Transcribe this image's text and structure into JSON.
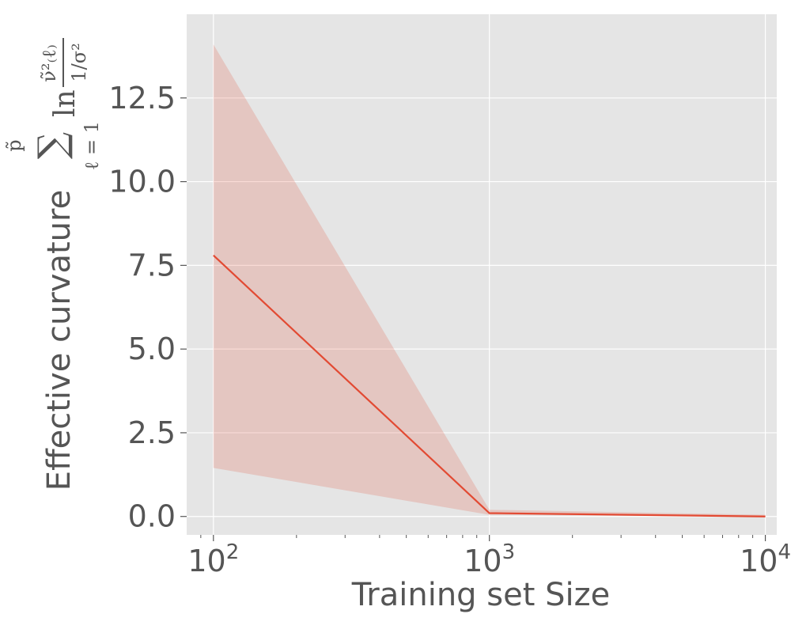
{
  "chart_data": {
    "type": "line",
    "xlabel": "Training set Size",
    "ylabel": "Effective curvature",
    "ylabel_formula": {
      "sum_symbol": "∑",
      "upper_limit": "p̃",
      "lower_limit": "ℓ = 1",
      "log": "ln",
      "numerator": "ν̃²₍ℓ₎",
      "denominator": "1/σ²"
    },
    "x_scale": "log",
    "xlim": [
      80,
      11000
    ],
    "ylim": [
      -0.55,
      15.0
    ],
    "x_ticks": [
      {
        "value": 100,
        "base": "10",
        "exp": "2"
      },
      {
        "value": 1000,
        "base": "10",
        "exp": "3"
      },
      {
        "value": 10000,
        "base": "10",
        "exp": "4"
      }
    ],
    "y_ticks": [
      {
        "value": 0.0,
        "label": "0.0"
      },
      {
        "value": 2.5,
        "label": "2.5"
      },
      {
        "value": 5.0,
        "label": "5.0"
      },
      {
        "value": 7.5,
        "label": "7.5"
      },
      {
        "value": 10.0,
        "label": "10.0"
      },
      {
        "value": 12.5,
        "label": "12.5"
      }
    ],
    "grid": true,
    "series": [
      {
        "x": [
          100,
          1000,
          10000
        ],
        "y": [
          7.8,
          0.1,
          0.0
        ],
        "band_lower": [
          1.45,
          0.05,
          0.0
        ],
        "band_upper": [
          14.1,
          0.2,
          0.05
        ],
        "color": "#E24A33",
        "band_color": "#E24A33"
      }
    ],
    "style": {
      "plot_background": "#E5E5E5",
      "grid_color": "#FFFFFF",
      "text_color": "#555555"
    }
  }
}
